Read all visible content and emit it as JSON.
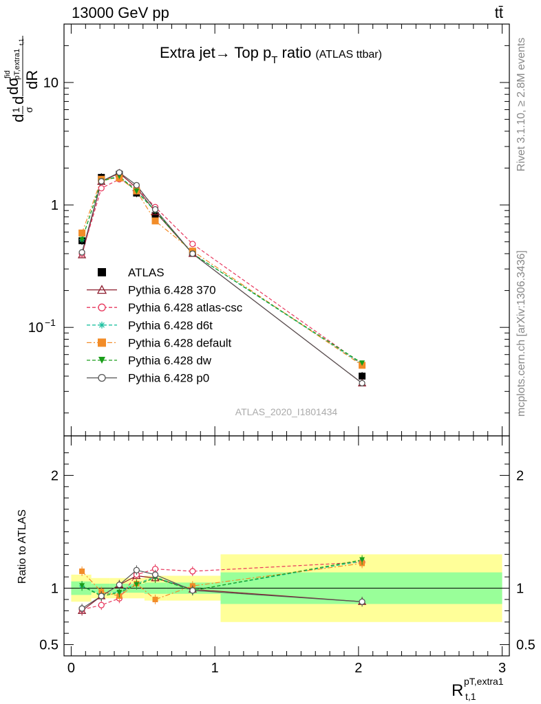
{
  "header": {
    "left": "13000 GeV pp",
    "right": "tt̄"
  },
  "side_labels": {
    "rivet": "Rivet 3.1.10, ≥ 2.8M events",
    "mcplots": "mcplots.cern.ch [arXiv:1306.3436]"
  },
  "chart_data": [
    {
      "type": "line",
      "panel": "main",
      "title_main": "Extra jet→ Top p",
      "title_sub": "T",
      "title_tail": " ratio",
      "title_small": "(ATLAS ttbar)",
      "watermark": "ATLAS_2020_I1801434",
      "ylabel": "d¹/σ dσ^fid / dR^pT,extra1_t,1",
      "yscale": "log",
      "ylim": [
        0.013,
        30
      ],
      "xlim": [
        -0.05,
        3.05
      ],
      "ytick_labels": [
        {
          "v": 10,
          "base": "10",
          "exp": ""
        },
        {
          "v": 1,
          "base": "1",
          "exp": ""
        },
        {
          "v": 0.1,
          "base": "10",
          "exp": "−1"
        }
      ],
      "legend_position": "center-left",
      "x": [
        0.075,
        0.21,
        0.335,
        0.455,
        0.585,
        0.845,
        2.025
      ],
      "series": [
        {
          "name": "ATLAS",
          "color": "#000000",
          "marker": "square",
          "dash": "none",
          "values": [
            0.51,
            1.68,
            1.78,
            1.25,
            0.82,
            0.41,
            0.04
          ]
        },
        {
          "name": "Pythia 6.428 370",
          "color": "#8b1a2b",
          "marker": "triangle-open",
          "dash": "solid",
          "values": [
            0.39,
            1.55,
            1.82,
            1.38,
            0.88,
            0.4,
            0.035
          ]
        },
        {
          "name": "Pythia 6.428 atlas-csc",
          "color": "#e8365c",
          "marker": "circle-open",
          "dash": "dashed",
          "values": [
            0.4,
            1.37,
            1.62,
            1.38,
            0.96,
            0.48,
            0.05
          ]
        },
        {
          "name": "Pythia 6.428 d6t",
          "color": "#1dc0a0",
          "marker": "star",
          "dash": "dashed",
          "values": [
            0.52,
            1.58,
            1.72,
            1.3,
            0.9,
            0.4,
            0.05
          ]
        },
        {
          "name": "Pythia 6.428 default",
          "color": "#f28c28",
          "marker": "square",
          "dash": "dashdot",
          "values": [
            0.59,
            1.62,
            1.66,
            1.3,
            0.74,
            0.42,
            0.049
          ]
        },
        {
          "name": "Pythia 6.428 dw",
          "color": "#1a9e1a",
          "marker": "triangle-down",
          "dash": "dashed",
          "values": [
            0.52,
            1.56,
            1.71,
            1.29,
            0.89,
            0.4,
            0.051
          ]
        },
        {
          "name": "Pythia 6.428 p0",
          "color": "#555555",
          "marker": "circle-open",
          "dash": "solid",
          "values": [
            0.41,
            1.56,
            1.84,
            1.45,
            0.92,
            0.4,
            0.035
          ]
        }
      ]
    },
    {
      "type": "line",
      "panel": "ratio",
      "ylabel": "Ratio to ATLAS",
      "xlabel_base": "R",
      "xlabel_sup": "pT,extra1",
      "xlabel_sub": "t,1",
      "ylim": [
        0.4,
        2.35
      ],
      "xlim": [
        -0.05,
        3.05
      ],
      "xticks": [
        0,
        1,
        2,
        3
      ],
      "xtick_labels": [
        "0",
        "1",
        "2",
        "3"
      ],
      "yticks": [
        0.5,
        1,
        2
      ],
      "ytick_labels": [
        "0.5",
        "1",
        "2"
      ],
      "bands": [
        {
          "x0": 0.0,
          "x1": 0.14,
          "inner": [
            0.94,
            1.06
          ],
          "outer": [
            0.88,
            1.12
          ]
        },
        {
          "x0": 0.14,
          "x1": 0.27,
          "inner": [
            0.96,
            1.04
          ],
          "outer": [
            0.91,
            1.09
          ]
        },
        {
          "x0": 0.27,
          "x1": 0.4,
          "inner": [
            0.96,
            1.04
          ],
          "outer": [
            0.91,
            1.09
          ]
        },
        {
          "x0": 0.4,
          "x1": 0.51,
          "inner": [
            0.96,
            1.04
          ],
          "outer": [
            0.91,
            1.09
          ]
        },
        {
          "x0": 0.51,
          "x1": 0.66,
          "inner": [
            0.95,
            1.05
          ],
          "outer": [
            0.89,
            1.11
          ]
        },
        {
          "x0": 0.66,
          "x1": 1.04,
          "inner": [
            0.95,
            1.05
          ],
          "outer": [
            0.89,
            1.11
          ]
        },
        {
          "x0": 1.04,
          "x1": 3.0,
          "inner": [
            0.86,
            1.14
          ],
          "outer": [
            0.7,
            1.3
          ]
        }
      ],
      "x": [
        0.075,
        0.21,
        0.335,
        0.455,
        0.585,
        0.845,
        2.025
      ],
      "series": [
        {
          "name": "Pythia 6.428 370",
          "values": [
            0.8,
            0.93,
            1.03,
            1.11,
            1.09,
            0.99,
            0.88
          ]
        },
        {
          "name": "Pythia 6.428 atlas-csc",
          "values": [
            0.81,
            0.85,
            0.91,
            1.12,
            1.17,
            1.15,
            1.23
          ]
        },
        {
          "name": "Pythia 6.428 d6t",
          "values": [
            1.02,
            0.94,
            0.97,
            1.04,
            1.1,
            0.98,
            1.24
          ]
        },
        {
          "name": "Pythia 6.428 default",
          "values": [
            1.15,
            0.97,
            0.93,
            1.04,
            0.9,
            1.02,
            1.22
          ]
        },
        {
          "name": "Pythia 6.428 dw",
          "values": [
            1.02,
            0.93,
            0.96,
            1.03,
            1.09,
            0.98,
            1.25
          ]
        },
        {
          "name": "Pythia 6.428 p0",
          "values": [
            0.82,
            0.93,
            1.03,
            1.16,
            1.12,
            0.98,
            0.88
          ]
        }
      ]
    }
  ]
}
